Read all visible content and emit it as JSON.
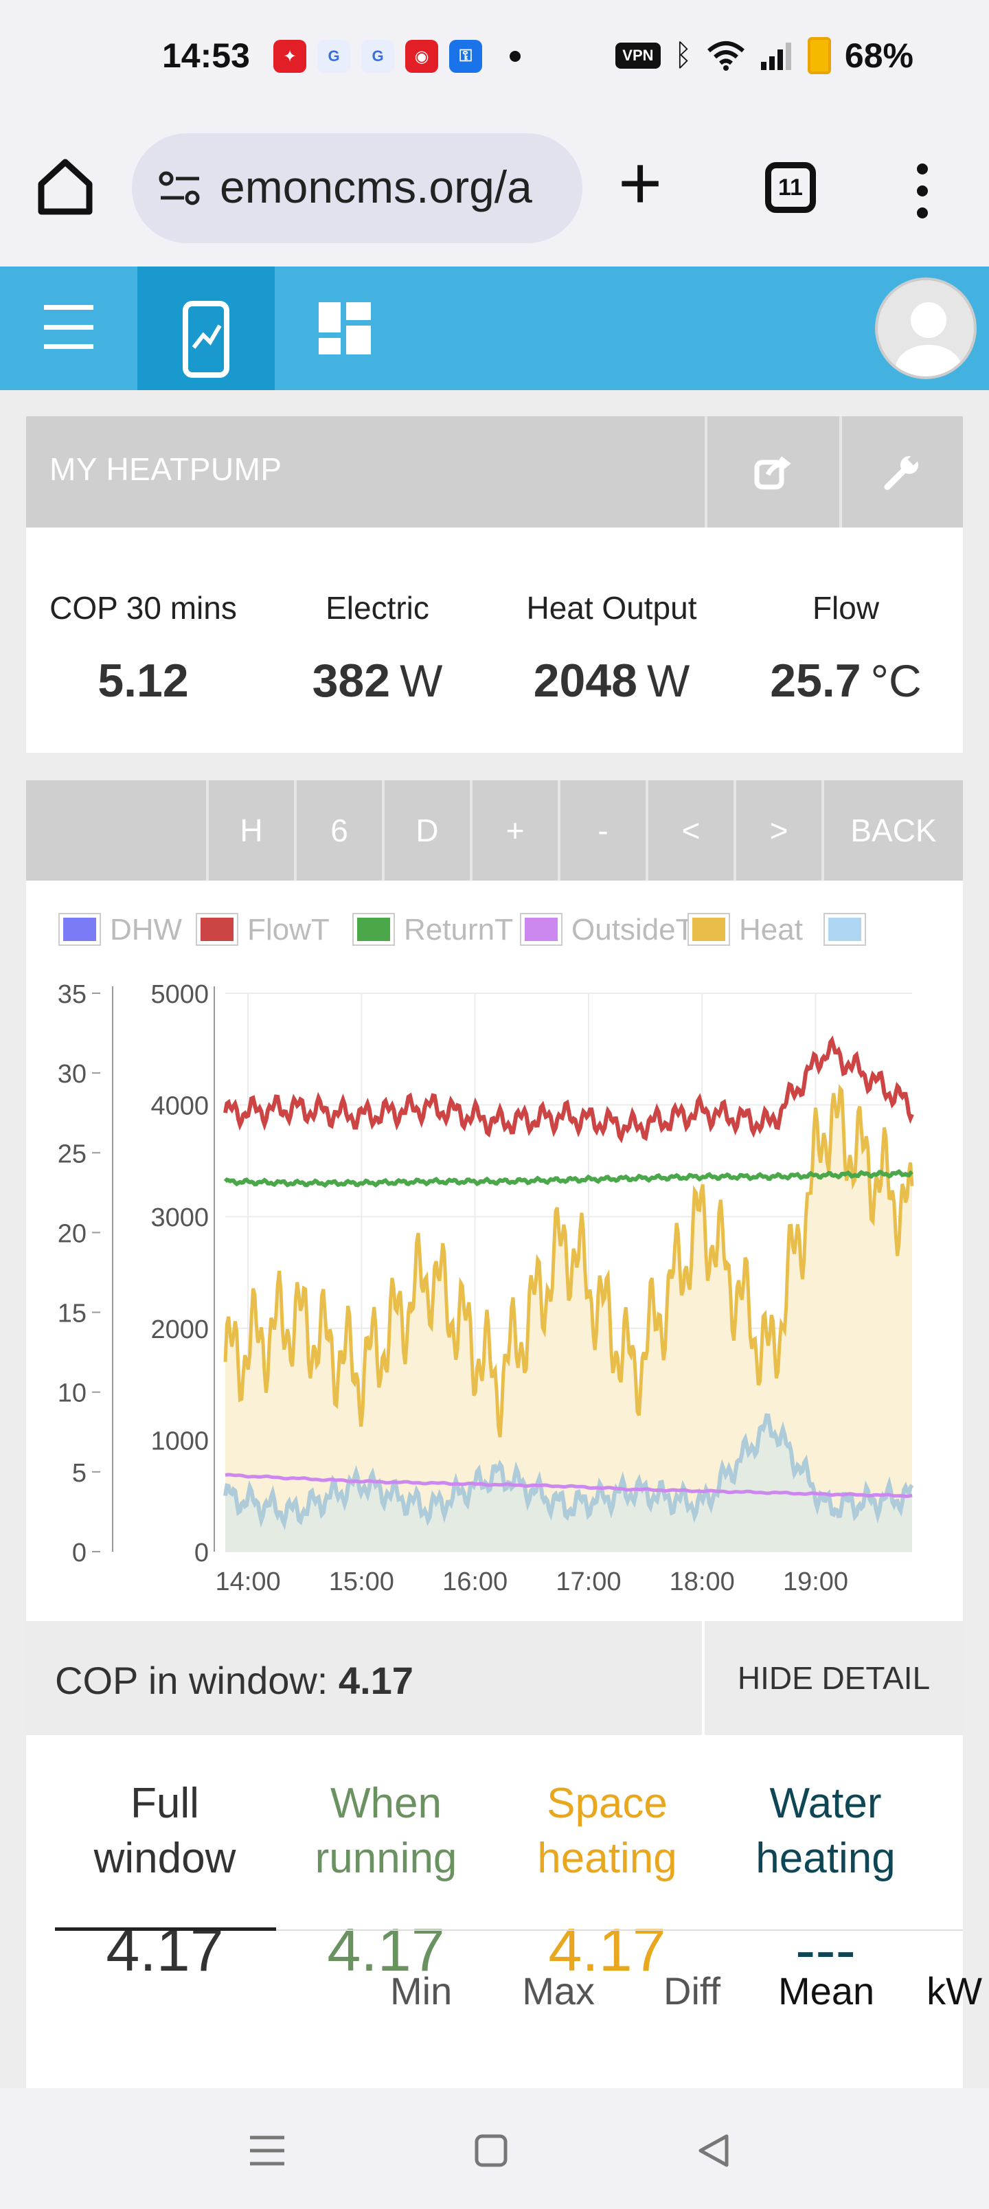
{
  "status_bar": {
    "time": "14:53",
    "vpn": "VPN",
    "battery": "68%",
    "battery_level": 0.68
  },
  "browser": {
    "url": "emoncms.org/a",
    "tab_count": "11"
  },
  "app": {
    "panel_title": "MY HEATPUMP",
    "stats": [
      {
        "label": "COP 30 mins",
        "value": "5.12",
        "unit": ""
      },
      {
        "label": "Electric",
        "value": "382",
        "unit": "W"
      },
      {
        "label": "Heat Output",
        "value": "2048",
        "unit": "W"
      },
      {
        "label": "Flow",
        "value": "25.7",
        "unit": "°C"
      }
    ],
    "toolbar": [
      "H",
      "6",
      "D",
      "+",
      "-",
      "<",
      ">",
      "BACK"
    ],
    "cop_in_window_label": "COP in window: ",
    "cop_in_window_value": "4.17",
    "hide_detail": "HIDE DETAIL",
    "cop_columns": [
      {
        "head1": "Full",
        "head2": "window",
        "value": "4.17",
        "color": "#333333"
      },
      {
        "head1": "When",
        "head2": "running",
        "value": "4.17",
        "color": "#6a9160"
      },
      {
        "head1": "Space",
        "head2": "heating",
        "value": "4.17",
        "color": "#e8a71f"
      },
      {
        "head1": "Water",
        "head2": "heating",
        "value": "---",
        "color": "#0e4656"
      }
    ],
    "stat_tabs": [
      "Min",
      "Max",
      "Diff",
      "Mean",
      "kW"
    ]
  },
  "colors": {
    "navbar": "#44b2e0",
    "navbar_active": "#1a99cf",
    "header_gray": "#cfcfcf"
  },
  "chart_data": {
    "type": "line",
    "legend": [
      {
        "name": "DHW",
        "color": "#7b7bf5"
      },
      {
        "name": "FlowT",
        "color": "#cc4444"
      },
      {
        "name": "ReturnT",
        "color": "#4aa84a"
      },
      {
        "name": "OutsideT",
        "color": "#cc88ee"
      },
      {
        "name": "Heat",
        "color": "#e8bd4a"
      },
      {
        "name": "",
        "color": "#aed6f2"
      }
    ],
    "x_ticks": [
      "14:00",
      "15:00",
      "16:00",
      "17:00",
      "18:00",
      "19:00"
    ],
    "x_range_hours": [
      13.8,
      19.85
    ],
    "y_left_ticks": [
      "0",
      "5",
      "10",
      "15",
      "20",
      "25",
      "30",
      "35"
    ],
    "y_left_range": [
      0,
      35
    ],
    "y_right_ticks": [
      "0",
      "1000",
      "2000",
      "3000",
      "4000",
      "5000"
    ],
    "y_right_range": [
      0,
      5000
    ],
    "grid": true,
    "series": [
      {
        "name": "FlowT",
        "axis": "left",
        "unit": "°C",
        "x": [
          13.8,
          14.4,
          15.0,
          15.6,
          16.2,
          16.8,
          17.4,
          18.0,
          18.6,
          19.1,
          19.85
        ],
        "y": [
          27.5,
          27.8,
          27.3,
          27.9,
          26.9,
          27.3,
          26.6,
          27.6,
          26.8,
          31.5,
          27.9
        ]
      },
      {
        "name": "ReturnT",
        "axis": "left",
        "unit": "°C",
        "x": [
          13.8,
          14.4,
          15.0,
          15.6,
          16.2,
          16.8,
          17.4,
          18.0,
          18.6,
          19.1,
          19.85
        ],
        "y": [
          23.2,
          23.1,
          23.1,
          23.2,
          23.2,
          23.3,
          23.4,
          23.5,
          23.5,
          23.6,
          23.7
        ]
      },
      {
        "name": "OutsideT",
        "axis": "left",
        "unit": "°C",
        "x": [
          13.8,
          14.4,
          15.0,
          15.6,
          16.2,
          16.8,
          17.4,
          18.0,
          18.6,
          19.1,
          19.85
        ],
        "y": [
          4.8,
          4.6,
          4.4,
          4.3,
          4.2,
          4.1,
          3.9,
          3.8,
          3.7,
          3.6,
          3.5
        ]
      },
      {
        "name": "Heat",
        "axis": "right",
        "unit": "W",
        "x": [
          13.8,
          14.4,
          15.0,
          15.6,
          16.2,
          16.8,
          17.4,
          18.0,
          18.6,
          19.1,
          19.85
        ],
        "y": [
          1700,
          2100,
          1600,
          2500,
          1500,
          2800,
          1600,
          3000,
          1700,
          3900,
          3000
        ]
      },
      {
        "name": "Electric",
        "axis": "right",
        "unit": "W",
        "x": [
          13.8,
          14.4,
          15.0,
          15.6,
          16.2,
          16.8,
          17.4,
          18.0,
          18.6,
          19.1,
          19.85
        ],
        "y": [
          500,
          350,
          620,
          380,
          700,
          400,
          550,
          420,
          1150,
          400,
          500
        ]
      }
    ]
  }
}
